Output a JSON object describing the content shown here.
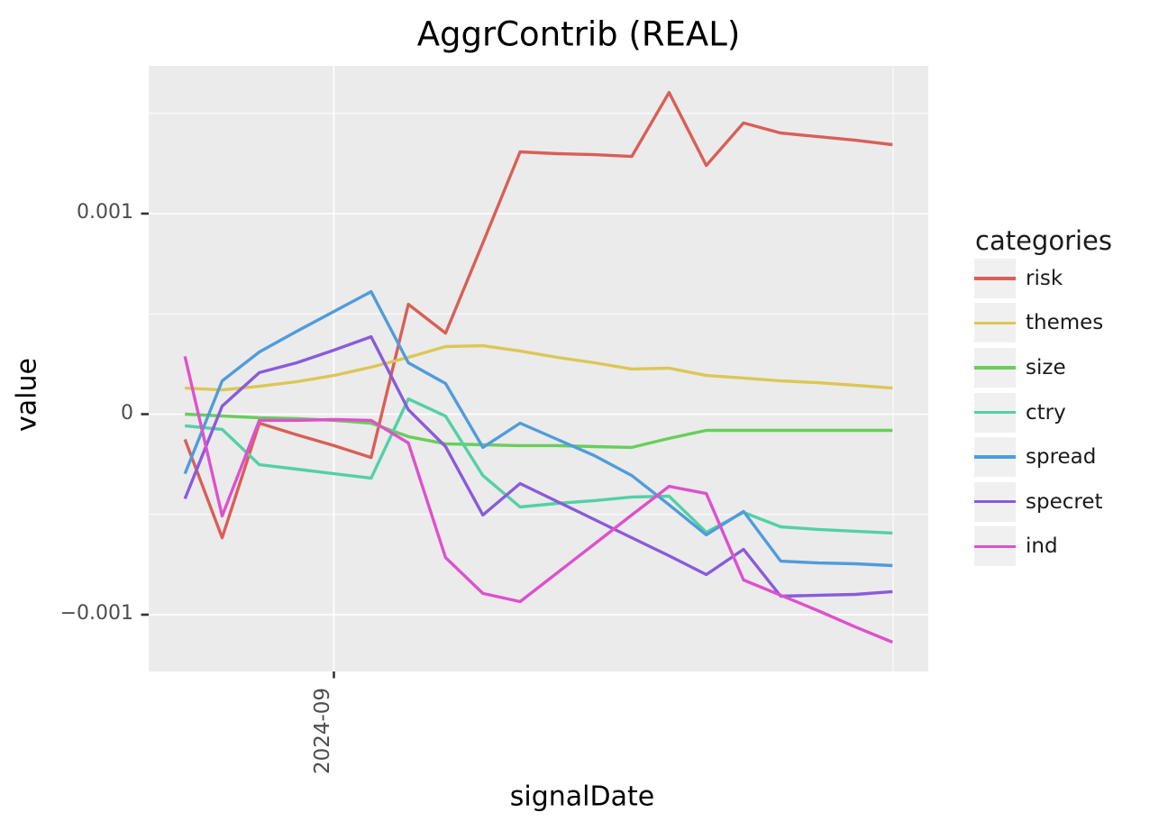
{
  "title": "AggrContrib (REAL)",
  "x_axis_label": "signalDate",
  "y_axis_label": "value",
  "x_tick_label": "2024-09",
  "legend": {
    "title": "categories"
  },
  "colors": {
    "panel_background": "#ebebeb",
    "gridline": "#ffffff",
    "tick_mark": "#333333",
    "tick_text": "#4d4d4d"
  },
  "chart_data": {
    "type": "line",
    "title": "AggrContrib (REAL)",
    "xlabel": "signalDate",
    "ylabel": "value",
    "x_index": [
      0,
      1,
      2,
      3,
      4,
      5,
      6,
      7,
      8,
      9,
      10,
      11,
      12,
      13,
      14,
      15,
      16,
      17,
      18,
      19
    ],
    "x_tick": {
      "label": "2024-09",
      "index": 4
    },
    "x_minor_gridline_index": 19.02,
    "y_ticks": [
      {
        "label": "0.001",
        "value": 0.001
      },
      {
        "label": "0",
        "value": 0
      },
      {
        "label": "−0.001",
        "value": -0.001
      }
    ],
    "y_minor_gridlines": [
      0.0015,
      0.0005,
      -0.0005
    ],
    "ylim": [
      -0.00128,
      0.00174
    ],
    "legend_title": "categories",
    "legend_position": "right",
    "grid": true,
    "series": [
      {
        "name": "risk",
        "color": "#d95f57",
        "values": [
          -0.000126,
          -0.000616,
          -4.5e-05,
          -0.000103,
          -0.000157,
          -0.000216,
          0.000548,
          0.000404,
          0.000854,
          0.001308,
          0.001299,
          0.001294,
          0.001285,
          0.001604,
          0.00124,
          0.001452,
          0.001402,
          0.001384,
          0.001366,
          0.001344
        ]
      },
      {
        "name": "themes",
        "color": "#dbc755",
        "values": [
          0.00013,
          0.000121,
          0.000139,
          0.000162,
          0.000193,
          0.000234,
          0.000283,
          0.000337,
          0.000341,
          0.000315,
          0.000283,
          0.000256,
          0.000225,
          0.000229,
          0.000193,
          0.00018,
          0.000166,
          0.000157,
          0.000144,
          0.00013
        ]
      },
      {
        "name": "size",
        "color": "#68ce5b",
        "values": [
          0.0,
          -9e-06,
          -1.8e-05,
          -2.2e-05,
          -3.1e-05,
          -4.5e-05,
          -0.000112,
          -0.000148,
          -0.000153,
          -0.000157,
          -0.000157,
          -0.000162,
          -0.000166,
          -0.000121,
          -8.1e-05,
          -8.1e-05,
          -8.1e-05,
          -8.1e-05,
          -8.1e-05,
          -8.1e-05
        ]
      },
      {
        "name": "ctry",
        "color": "#52d1a4",
        "values": [
          -5.8e-05,
          -7.6e-05,
          -0.000252,
          -0.000274,
          -0.000297,
          -0.000319,
          7.6e-05,
          -1e-05,
          -0.000306,
          -0.000463,
          -0.000445,
          -0.000431,
          -0.000413,
          -0.000409,
          -0.000589,
          -0.00049,
          -0.000562,
          -0.000575,
          -0.000584,
          -0.000593
        ]
      },
      {
        "name": "spread",
        "color": "#4f9cdb",
        "values": [
          -0.000297,
          0.000166,
          0.00031,
          0.000413,
          0.000512,
          0.000611,
          0.000256,
          0.000153,
          -0.000166,
          -4.5e-05,
          -0.000126,
          -0.000207,
          -0.000306,
          -0.000452,
          -0.000602,
          -0.000485,
          -0.000733,
          -0.000742,
          -0.000746,
          -0.000755
        ]
      },
      {
        "name": "specret",
        "color": "#8a5bdb",
        "values": [
          -0.000422,
          4e-05,
          0.000207,
          0.000256,
          0.000319,
          0.000386,
          2.2e-05,
          -0.000162,
          -0.000503,
          -0.000346,
          -0.000436,
          -0.000526,
          -0.000616,
          -0.000706,
          -0.0008,
          -0.000674,
          -0.000908,
          -0.000903,
          -0.000899,
          -0.000885
        ]
      },
      {
        "name": "ind",
        "color": "#de51cd",
        "values": [
          0.000288,
          -0.000508,
          -3.1e-05,
          -3.1e-05,
          -2.7e-05,
          -3.1e-05,
          -0.000144,
          -0.000715,
          -0.000894,
          -0.000935,
          -0.000791,
          -0.000647,
          -0.000503,
          -0.00036,
          -0.000396,
          -0.000827,
          -0.000903,
          -0.00098,
          -0.001061,
          -0.001137
        ]
      }
    ]
  }
}
